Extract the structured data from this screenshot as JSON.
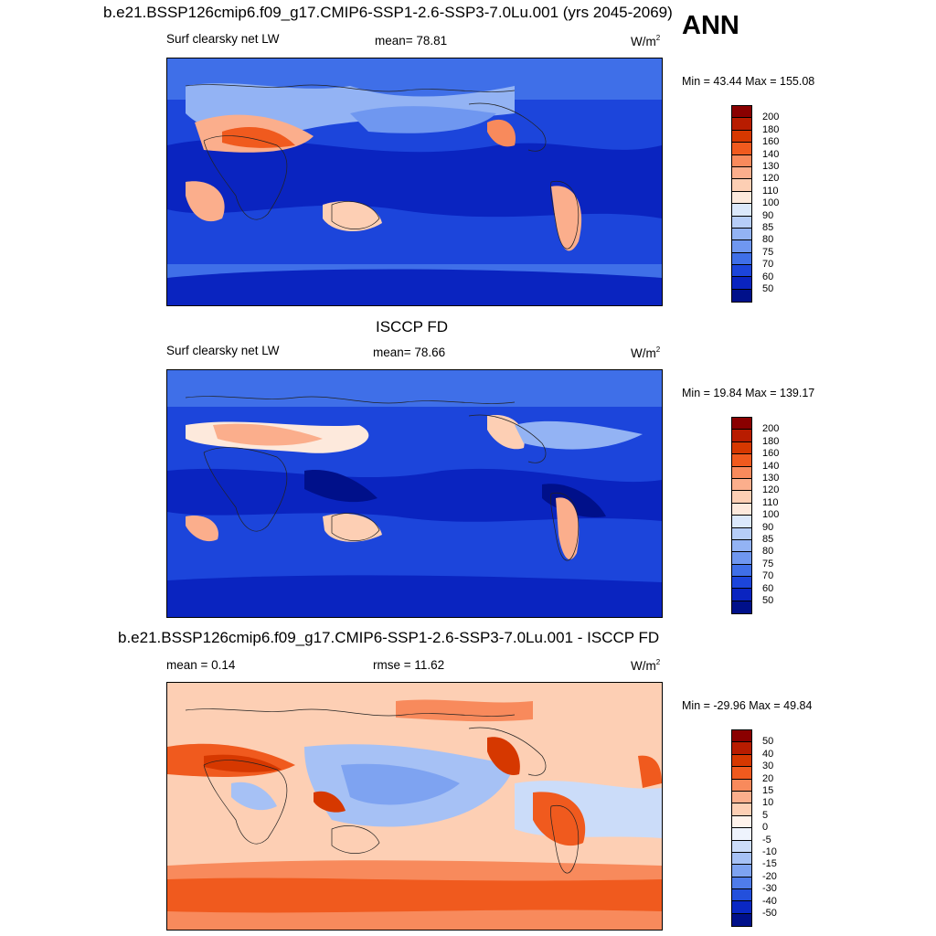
{
  "header": {
    "title": "b.e21.BSSP126cmip6.f09_g17.CMIP6-SSP1-2.6-SSP3-7.0Lu.001 (yrs 2045-2069)",
    "season": "ANN"
  },
  "panels": [
    {
      "title": "",
      "left_label": "Surf clearsky net LW",
      "center_label": "mean=  78.81",
      "units": "W/m",
      "units_sup": "2",
      "minmax": "Min =  43.44 Max = 155.08",
      "colorbar": {
        "labels": [
          "200",
          "180",
          "160",
          "140",
          "130",
          "120",
          "110",
          "100",
          "90",
          "85",
          "80",
          "75",
          "70",
          "60",
          "50"
        ],
        "colors": [
          "#8a0000",
          "#b81c00",
          "#d63800",
          "#f05a1e",
          "#f88a5c",
          "#fbae8c",
          "#fdcfb4",
          "#fde9dc",
          "#dbe8fb",
          "#b6cdf8",
          "#93b3f4",
          "#6f97f0",
          "#3f6fe8",
          "#1c45db",
          "#0a24c0",
          "#00108a"
        ]
      },
      "map_type": "model"
    },
    {
      "title": "ISCCP FD",
      "left_label": "Surf clearsky net LW",
      "center_label": "mean=  78.66",
      "units": "W/m",
      "units_sup": "2",
      "minmax": "Min =  19.84 Max = 139.17",
      "colorbar": {
        "labels": [
          "200",
          "180",
          "160",
          "140",
          "130",
          "120",
          "110",
          "100",
          "90",
          "85",
          "80",
          "75",
          "70",
          "60",
          "50"
        ],
        "colors": [
          "#8a0000",
          "#b81c00",
          "#d63800",
          "#f05a1e",
          "#f88a5c",
          "#fbae8c",
          "#fdcfb4",
          "#fde9dc",
          "#dbe8fb",
          "#b6cdf8",
          "#93b3f4",
          "#6f97f0",
          "#3f6fe8",
          "#1c45db",
          "#0a24c0",
          "#00108a"
        ]
      },
      "map_type": "obs"
    },
    {
      "title": "b.e21.BSSP126cmip6.f09_g17.CMIP6-SSP1-2.6-SSP3-7.0Lu.001 - ISCCP FD",
      "left_label": "mean =   0.14",
      "center_label": "rmse =  11.62",
      "units": "W/m",
      "units_sup": "2",
      "minmax": "Min = -29.96 Max =  49.84",
      "colorbar": {
        "labels": [
          "50",
          "40",
          "30",
          "20",
          "15",
          "10",
          "5",
          "0",
          "-5",
          "-10",
          "-15",
          "-20",
          "-30",
          "-40",
          "-50"
        ],
        "colors": [
          "#8a0000",
          "#b81c00",
          "#d63800",
          "#f05a1e",
          "#f88a5c",
          "#fbae8c",
          "#fdcfb4",
          "#fff3ec",
          "#eef3fd",
          "#cbdcf9",
          "#a6c1f5",
          "#7ea3f1",
          "#4f7cea",
          "#2350dc",
          "#0a28c4",
          "#00108a"
        ]
      },
      "map_type": "diff"
    }
  ]
}
